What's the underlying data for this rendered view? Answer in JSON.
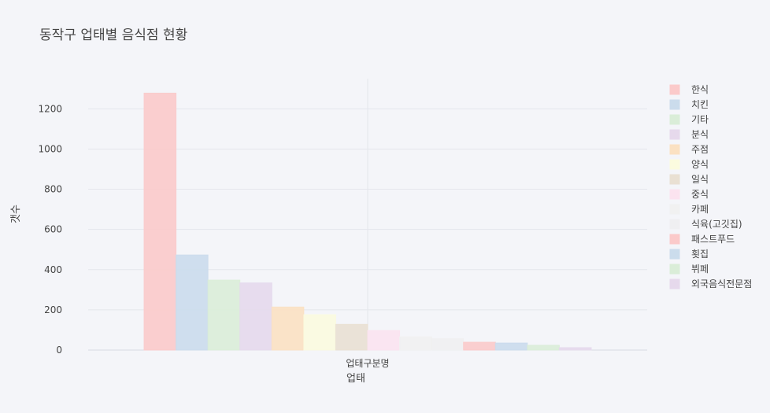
{
  "chart_data": {
    "type": "bar",
    "title": "동작구 업태별 음식점 현황",
    "xlabel": "업태",
    "ylabel": "갯수",
    "categories": [
      "업태구분명"
    ],
    "ylim": [
      0,
      1350
    ],
    "yticks": [
      0,
      200,
      400,
      600,
      800,
      1000,
      1200
    ],
    "grid": true,
    "legend_position": "right",
    "series": [
      {
        "name": "한식",
        "values": [
          1278
        ],
        "color": "#fbcaca"
      },
      {
        "name": "치킨",
        "values": [
          473
        ],
        "color": "#cbdcec"
      },
      {
        "name": "기타",
        "values": [
          348
        ],
        "color": "#daedd8"
      },
      {
        "name": "분식",
        "values": [
          334
        ],
        "color": "#e6d9ec"
      },
      {
        "name": "주점",
        "values": [
          214
        ],
        "color": "#fbe1c2"
      },
      {
        "name": "양식",
        "values": [
          176
        ],
        "color": "#fbfbdf"
      },
      {
        "name": "일식",
        "values": [
          128
        ],
        "color": "#e9e0d3"
      },
      {
        "name": "중식",
        "values": [
          97
        ],
        "color": "#fbe3ef"
      },
      {
        "name": "카페",
        "values": [
          66
        ],
        "color": "#f1f1f1"
      },
      {
        "name": "식육(고깃집)",
        "values": [
          57
        ],
        "color": "#efeff1"
      },
      {
        "name": "패스트푸드",
        "values": [
          39
        ],
        "color": "#fbcaca"
      },
      {
        "name": "횟집",
        "values": [
          35
        ],
        "color": "#cbdcec"
      },
      {
        "name": "뷔페",
        "values": [
          24
        ],
        "color": "#daedd8"
      },
      {
        "name": "외국음식전문점",
        "values": [
          12
        ],
        "color": "#e6d9ec"
      }
    ]
  }
}
